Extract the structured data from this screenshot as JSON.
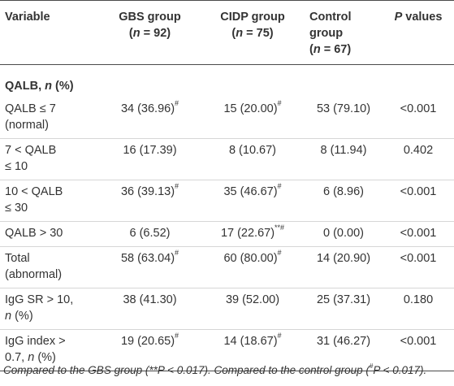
{
  "header": {
    "variable": "Variable",
    "gbs_l1": "GBS group",
    "gbs_l2": "(n = 92)",
    "cidp_l1": "CIDP group",
    "cidp_l2": "(n = 75)",
    "control_l1": "Control",
    "control_l2": "group",
    "control_l3": "(n = 67)",
    "p_label": "P values"
  },
  "section": {
    "label": "QALB, n (%)"
  },
  "rows": [
    {
      "label_l1": "QALB ≤ 7",
      "label_l2": "(normal)",
      "gbs": "34 (36.96)",
      "gbs_mark": "#",
      "cidp": "15 (20.00)",
      "cidp_mark": "#",
      "control": "53 (79.10)",
      "p": "<0.001"
    },
    {
      "label_l1": "7 < QALB",
      "label_l2": "≤ 10",
      "gbs": "16 (17.39)",
      "gbs_mark": "",
      "cidp": "8 (10.67)",
      "cidp_mark": "",
      "control": "8 (11.94)",
      "p": "0.402"
    },
    {
      "label_l1": "10 < QALB",
      "label_l2": "≤ 30",
      "gbs": "36 (39.13)",
      "gbs_mark": "#",
      "cidp": "35 (46.67)",
      "cidp_mark": "#",
      "control": "6 (8.96)",
      "p": "<0.001"
    },
    {
      "label_l1": "QALB > 30",
      "label_l2": "",
      "gbs": "6 (6.52)",
      "gbs_mark": "",
      "cidp": "17 (22.67)",
      "cidp_mark": "**#",
      "control": "0 (0.00)",
      "p": "<0.001"
    },
    {
      "label_l1": "Total",
      "label_l2": "(abnormal)",
      "gbs": "58 (63.04)",
      "gbs_mark": "#",
      "cidp": "60 (80.00)",
      "cidp_mark": "#",
      "control": "14 (20.90)",
      "p": "<0.001"
    },
    {
      "label_l1": "IgG SR > 10,",
      "label_l2": "n (%)",
      "gbs": "38 (41.30)",
      "gbs_mark": "",
      "cidp": "39 (52.00)",
      "cidp_mark": "",
      "control": "25 (37.31)",
      "p": "0.180"
    },
    {
      "label_l1": "IgG index >",
      "label_l2": "0.7, n (%)",
      "gbs": "19 (20.65)",
      "gbs_mark": "#",
      "cidp": "14 (18.67)",
      "cidp_mark": "#",
      "control": "31 (46.27)",
      "p": "<0.001"
    }
  ],
  "footnote": {
    "part1": "Compared to the GBS group (**P < 0.017). Compared to the control group (",
    "mark": "#",
    "part2": "P < 0.017)."
  }
}
